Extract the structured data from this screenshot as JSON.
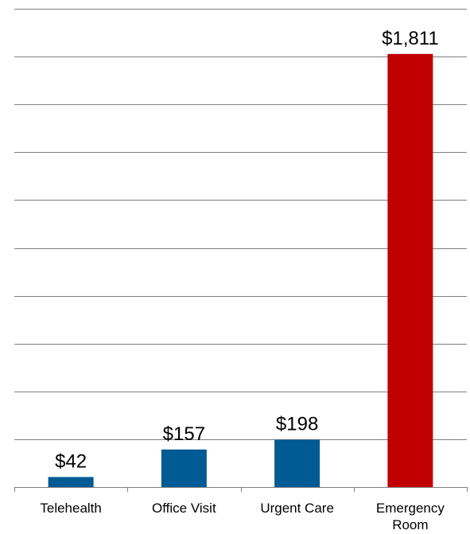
{
  "chart_data": {
    "type": "bar",
    "categories": [
      "Telehealth",
      "Office Visit",
      "Urgent Care",
      "Emergency Room"
    ],
    "category_lines": [
      [
        "Telehealth"
      ],
      [
        "Office Visit"
      ],
      [
        "Urgent Care"
      ],
      [
        "Emergency",
        "Room"
      ]
    ],
    "values": [
      42,
      157,
      198,
      1811
    ],
    "value_labels": [
      "$42",
      "$157",
      "$198",
      "$1,811"
    ],
    "bar_colors": [
      "#005a94",
      "#005a94",
      "#005a94",
      "#c00000"
    ],
    "ylim": [
      0,
      2000
    ],
    "y_grid_step": 200,
    "grid": true,
    "gridline_color": "#7f7f7f",
    "legend": "none",
    "title": "",
    "xlabel": "",
    "ylabel": ""
  }
}
